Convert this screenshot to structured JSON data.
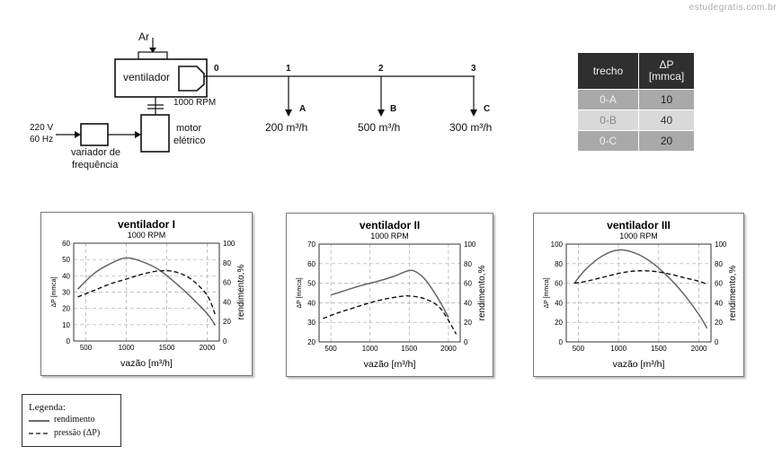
{
  "watermark": "estudegratis.com.br",
  "schematic": {
    "air_label": "Ar",
    "fan_label": "ventilador",
    "rpm_label": "1000 RPM",
    "motor_label_1": "motor",
    "motor_label_2": "elétrico",
    "supply_label_1": "220 V",
    "supply_label_2": "60 Hz",
    "vfd_label_1": "variador de",
    "vfd_label_2": "frequência",
    "points": [
      "0",
      "1",
      "2",
      "3"
    ],
    "outlets": [
      {
        "letter": "A",
        "flow": "200 m³/h"
      },
      {
        "letter": "B",
        "flow": "500 m³/h"
      },
      {
        "letter": "C",
        "flow": "300 m³/h"
      }
    ]
  },
  "pressure_table": {
    "col1": "trecho",
    "col2_line1": "ΔP",
    "col2_line2": "[mmca]",
    "rows": [
      {
        "trecho": "0-A",
        "dp": "10"
      },
      {
        "trecho": "0-B",
        "dp": "40"
      },
      {
        "trecho": "0-C",
        "dp": "20"
      }
    ]
  },
  "legend": {
    "title": "Legenda:",
    "solid": "rendimento",
    "dashed": "pressão (ΔP)"
  },
  "chart_data": [
    {
      "type": "line",
      "title": "ventilador I",
      "subtitle": "1000 RPM",
      "xlabel": "vazão [m³/h]",
      "ylabel": "ΔP [mmca]",
      "y2label": "rendimento,%",
      "xticks": [
        500,
        1000,
        1500,
        2000
      ],
      "xlim": [
        350,
        2150
      ],
      "ylim": [
        0,
        60
      ],
      "yticks": [
        0,
        10,
        20,
        30,
        40,
        50,
        60
      ],
      "y2lim": [
        0,
        100
      ],
      "y2ticks": [
        0,
        20,
        40,
        60,
        80,
        100
      ],
      "grid": true,
      "series": [
        {
          "name": "rendimento",
          "style": "solid",
          "axis": "y2",
          "x": [
            400,
            600,
            800,
            1000,
            1200,
            1400,
            1600,
            1800,
            2000,
            2100
          ],
          "y": [
            53,
            69,
            79,
            85,
            81,
            73,
            60,
            45,
            28,
            16
          ]
        },
        {
          "name": "pressão (ΔP)",
          "style": "dashed",
          "axis": "y",
          "x": [
            400,
            600,
            800,
            1000,
            1200,
            1400,
            1600,
            1800,
            2000,
            2100
          ],
          "y": [
            27,
            31,
            35,
            38,
            41,
            43,
            42.5,
            38,
            28,
            16
          ]
        }
      ]
    },
    {
      "type": "line",
      "title": "ventilador II",
      "subtitle": "1000 RPM",
      "xlabel": "vazão [m³/h]",
      "ylabel": "ΔP [mmca]",
      "y2label": "rendimento,%",
      "xticks": [
        500,
        1000,
        1500,
        2000
      ],
      "xlim": [
        350,
        2150
      ],
      "ylim": [
        20,
        70
      ],
      "yticks": [
        20,
        30,
        40,
        50,
        60,
        70
      ],
      "y2lim": [
        0,
        100
      ],
      "y2ticks": [
        0,
        20,
        40,
        60,
        80,
        100
      ],
      "grid": true,
      "series": [
        {
          "name": "rendimento",
          "style": "solid",
          "axis": "y2",
          "x": [
            500,
            700,
            900,
            1100,
            1300,
            1500,
            1600,
            1700,
            1800,
            1900,
            2000
          ],
          "y": [
            48,
            53,
            58,
            62,
            67,
            73,
            71,
            64,
            53,
            40,
            25
          ]
        },
        {
          "name": "pressão (ΔP)",
          "style": "dashed",
          "axis": "y",
          "x": [
            400,
            600,
            800,
            1000,
            1200,
            1400,
            1500,
            1700,
            1900,
            2100
          ],
          "y": [
            32,
            35,
            37.5,
            40,
            42,
            43.3,
            43.5,
            42,
            37,
            24
          ]
        }
      ]
    },
    {
      "type": "line",
      "title": "ventilador III",
      "subtitle": "1000 RPM",
      "xlabel": "vazão [m³/h]",
      "ylabel": "ΔP [mmca]",
      "y2label": "rendimento,%",
      "xticks": [
        500,
        1000,
        1500,
        2000
      ],
      "xlim": [
        350,
        2150
      ],
      "ylim": [
        0,
        100
      ],
      "yticks": [
        0,
        20,
        40,
        60,
        80,
        100
      ],
      "y2lim": [
        0,
        100
      ],
      "y2ticks": [
        0,
        20,
        40,
        60,
        80,
        100
      ],
      "grid": true,
      "series": [
        {
          "name": "rendimento",
          "style": "solid",
          "axis": "y2",
          "x": [
            450,
            600,
            800,
            1000,
            1200,
            1400,
            1600,
            1800,
            2000,
            2100
          ],
          "y": [
            60,
            75,
            88,
            94,
            91,
            82,
            68,
            50,
            28,
            14
          ]
        },
        {
          "name": "pressão (ΔP)",
          "style": "dashed",
          "axis": "y",
          "x": [
            450,
            600,
            800,
            1000,
            1200,
            1400,
            1600,
            1800,
            2000,
            2100
          ],
          "y": [
            60,
            62,
            66,
            70,
            72.5,
            72.5,
            70,
            66,
            62,
            59
          ]
        }
      ]
    }
  ]
}
